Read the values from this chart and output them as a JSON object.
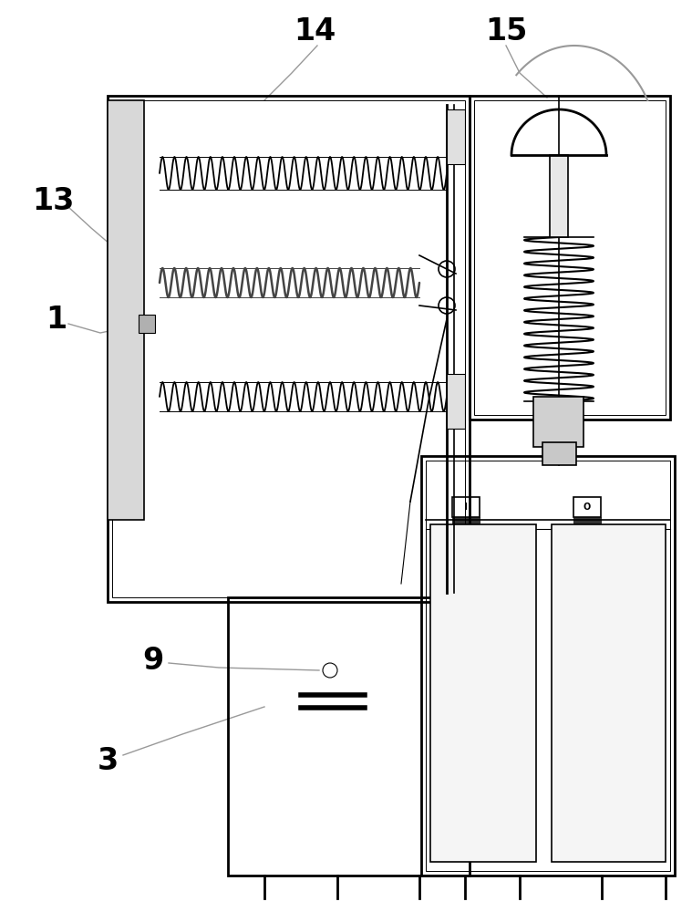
{
  "bg_color": "#ffffff",
  "lc": "#000000",
  "gc": "#999999",
  "figsize": [
    7.59,
    10.0
  ],
  "dpi": 100,
  "label_fontsize": 24
}
